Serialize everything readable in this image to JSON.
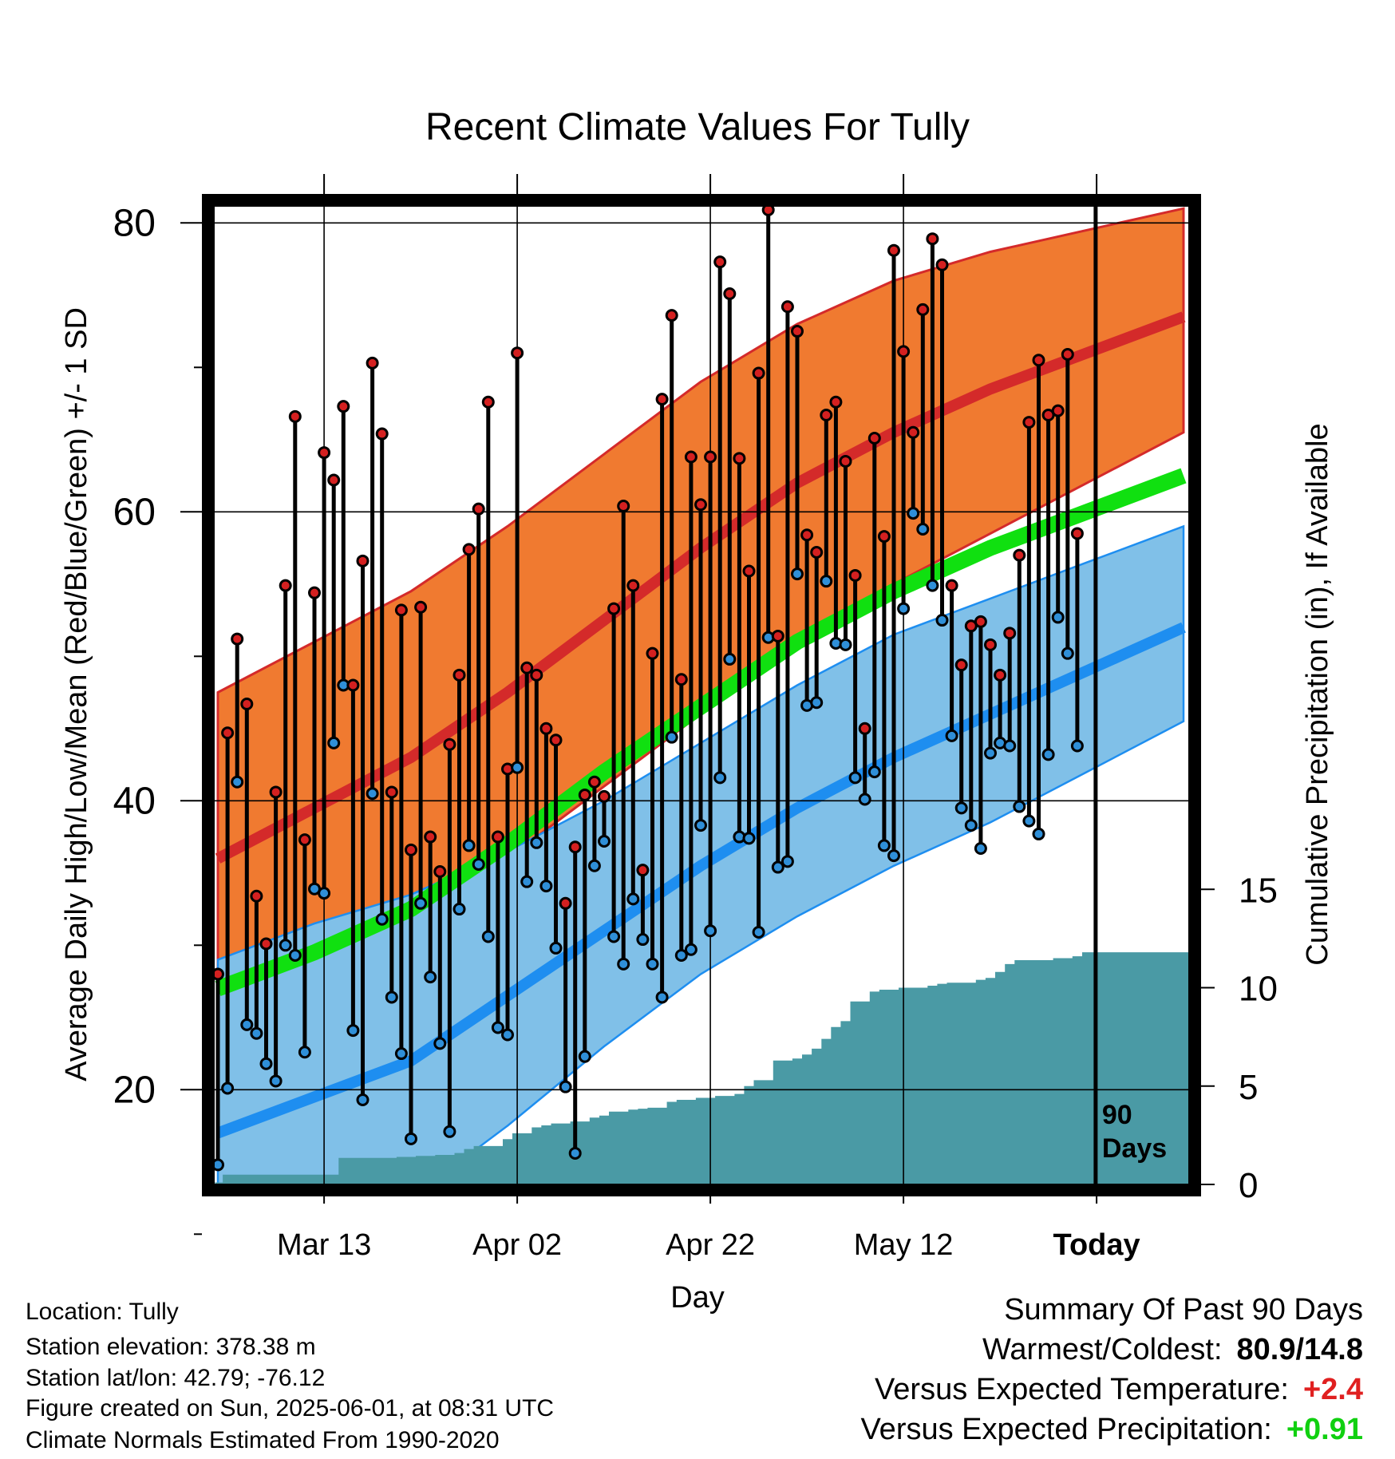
{
  "chart_data": {
    "type": "line",
    "title": "Recent Climate Values For Tully",
    "xlabel": "Day",
    "ylabel_left": "Average Daily High/Low/Mean (Red/Blue/Green) +/- 1 SD",
    "ylabel_right": "Cumulative Precipitation (in), If Available",
    "x_ticks": [
      {
        "day": 11,
        "label": "Mar 13"
      },
      {
        "day": 31,
        "label": "Apr 02"
      },
      {
        "day": 51,
        "label": "Apr 22"
      },
      {
        "day": 71,
        "label": "May 12"
      },
      {
        "day": 91,
        "label": "Today"
      }
    ],
    "x_range_days": [
      0,
      101
    ],
    "y_left_range": [
      5,
      90
    ],
    "y_left_ticks": [
      20,
      40,
      60,
      80
    ],
    "y_right_range": [
      0,
      46
    ],
    "y_right_ticks": [
      0,
      5,
      10,
      15
    ],
    "grid": true,
    "today_marker": {
      "day": 90.9,
      "label_top": "90",
      "label_bottom": "Days"
    },
    "colors": {
      "high_band": "#f07a30",
      "high_mean": "#d42a2a",
      "low_band": "#80c0e8",
      "low_mean": "#1e8ef0",
      "mean_band": "#10e010",
      "precip": "#4a9aa5",
      "high_point": "#d42020",
      "low_point": "#2f8fd8",
      "summary_temp": "#e02020",
      "summary_precip": "#10d010"
    },
    "normals": {
      "days": [
        0,
        10,
        20,
        30,
        40,
        50,
        60,
        70,
        80,
        90,
        100
      ],
      "high_mean": [
        36,
        39.5,
        43,
        47.5,
        52.5,
        57.5,
        62,
        65.5,
        68.5,
        71,
        73.5
      ],
      "high_upper": [
        47.5,
        51,
        54.5,
        59,
        64,
        69,
        73,
        76,
        78,
        79.5,
        81
      ],
      "high_lower": [
        26,
        29,
        32,
        36,
        41,
        46,
        51,
        55,
        58.5,
        62,
        65.5
      ],
      "low_mean": [
        17,
        19.5,
        22,
        26.5,
        31,
        35.5,
        39.5,
        43,
        46,
        49,
        52
      ],
      "low_upper": [
        29,
        31.5,
        33.5,
        36.5,
        40,
        44,
        48,
        51.5,
        54,
        56.5,
        59
      ],
      "low_lower": [
        5,
        8,
        12.5,
        17.5,
        23,
        28,
        32,
        35.5,
        38.5,
        42,
        45.5
      ],
      "mean_line": [
        27,
        29.5,
        32.5,
        37,
        42,
        46.5,
        51,
        54.5,
        57.5,
        60,
        62.5
      ]
    },
    "daily_highs": [
      28,
      44.7,
      51.2,
      46.7,
      33.4,
      30.1,
      40.6,
      54.9,
      66.6,
      37.3,
      54.4,
      64.1,
      62.2,
      67.3,
      48,
      56.6,
      70.3,
      65.4,
      40.6,
      53.2,
      36.6,
      53.4,
      37.5,
      35.1,
      43.9,
      48.7,
      57.4,
      60.2,
      67.6,
      37.5,
      42.2,
      71,
      49.2,
      48.7,
      45,
      44.2,
      32.9,
      36.8,
      40.4,
      41.3,
      40.3,
      53.3,
      60.4,
      54.9,
      35.2,
      50.2,
      67.8,
      73.6,
      48.4,
      63.8,
      60.5,
      63.8,
      77.3,
      75.1,
      63.7,
      55.9,
      69.6,
      80.9,
      51.4,
      74.2,
      72.5,
      58.4,
      57.2,
      66.7,
      67.6,
      63.5,
      55.6,
      45,
      65.1,
      58.3,
      78.1,
      71.1,
      65.5,
      74,
      78.9,
      77.1,
      54.9,
      49.4,
      52.1,
      52.4,
      50.8,
      48.7,
      51.6,
      57,
      66.2,
      70.5,
      66.7,
      67,
      70.9,
      58.5
    ],
    "daily_lows": [
      14.8,
      20.1,
      41.3,
      24.5,
      23.9,
      21.8,
      20.6,
      30,
      29.3,
      22.6,
      33.9,
      33.6,
      44,
      48,
      24.1,
      19.3,
      40.5,
      31.8,
      26.4,
      22.5,
      16.6,
      32.9,
      27.8,
      23.2,
      17.1,
      32.5,
      36.9,
      35.6,
      30.6,
      24.3,
      23.8,
      42.3,
      34.4,
      37.1,
      34.1,
      29.8,
      20.2,
      15.6,
      22.3,
      35.5,
      37.2,
      30.6,
      28.7,
      33.2,
      30.4,
      28.7,
      26.4,
      44.4,
      29.3,
      29.7,
      38.3,
      31,
      41.6,
      49.8,
      37.5,
      37.4,
      30.9,
      51.3,
      35.4,
      35.8,
      55.7,
      46.6,
      46.8,
      55.2,
      50.9,
      50.8,
      41.6,
      40.1,
      42,
      36.9,
      36.2,
      53.3,
      59.9,
      58.8,
      54.9,
      52.5,
      44.5,
      39.5,
      38.3,
      36.7,
      43.3,
      44,
      43.8,
      39.6,
      38.6,
      37.7,
      43.2,
      52.7,
      50.2,
      43.8
    ],
    "precip_cumulative": [
      0.1,
      0.5,
      0.5,
      0.5,
      0.5,
      0.5,
      0.5,
      0.5,
      0.5,
      0.5,
      0.5,
      0.5,
      0.5,
      1.35,
      1.35,
      1.35,
      1.35,
      1.35,
      1.35,
      1.4,
      1.4,
      1.45,
      1.45,
      1.5,
      1.5,
      1.6,
      1.8,
      1.95,
      1.95,
      1.95,
      2.3,
      2.6,
      2.6,
      2.9,
      3.0,
      3.1,
      3.1,
      3.2,
      3.2,
      3.4,
      3.5,
      3.7,
      3.7,
      3.8,
      3.85,
      3.9,
      3.9,
      4.2,
      4.3,
      4.3,
      4.4,
      4.4,
      4.5,
      4.5,
      4.6,
      5.0,
      5.3,
      5.3,
      6.3,
      6.3,
      6.4,
      6.6,
      6.9,
      7.4,
      8.0,
      8.3,
      9.3,
      9.3,
      9.8,
      9.9,
      9.9,
      10.0,
      10.0,
      10.0,
      10.1,
      10.2,
      10.25,
      10.25,
      10.25,
      10.4,
      10.5,
      10.8,
      11.2,
      11.4,
      11.4,
      11.4,
      11.4,
      11.5,
      11.5,
      11.6,
      11.8,
      11.8,
      11.8,
      11.8,
      11.8,
      11.8,
      11.8,
      11.8,
      11.8,
      11.8,
      11.8
    ]
  },
  "info": {
    "location": "Location: Tully",
    "elevation": "Station elevation: 378.38 m",
    "latlon": "Station lat/lon: 42.79; -76.12",
    "created": "Figure created on Sun, 2025-06-01, at 08:31 UTC",
    "normals_source": "Climate Normals Estimated From 1990-2020"
  },
  "summary": {
    "heading": "Summary Of Past 90 Days",
    "warm_cold_label": "Warmest/Coldest:",
    "warm_cold_value": "80.9/14.8",
    "temp_label": "Versus Expected Temperature:",
    "temp_value": "+2.4",
    "precip_label": "Versus Expected Precipitation:",
    "precip_value": "+0.91"
  }
}
